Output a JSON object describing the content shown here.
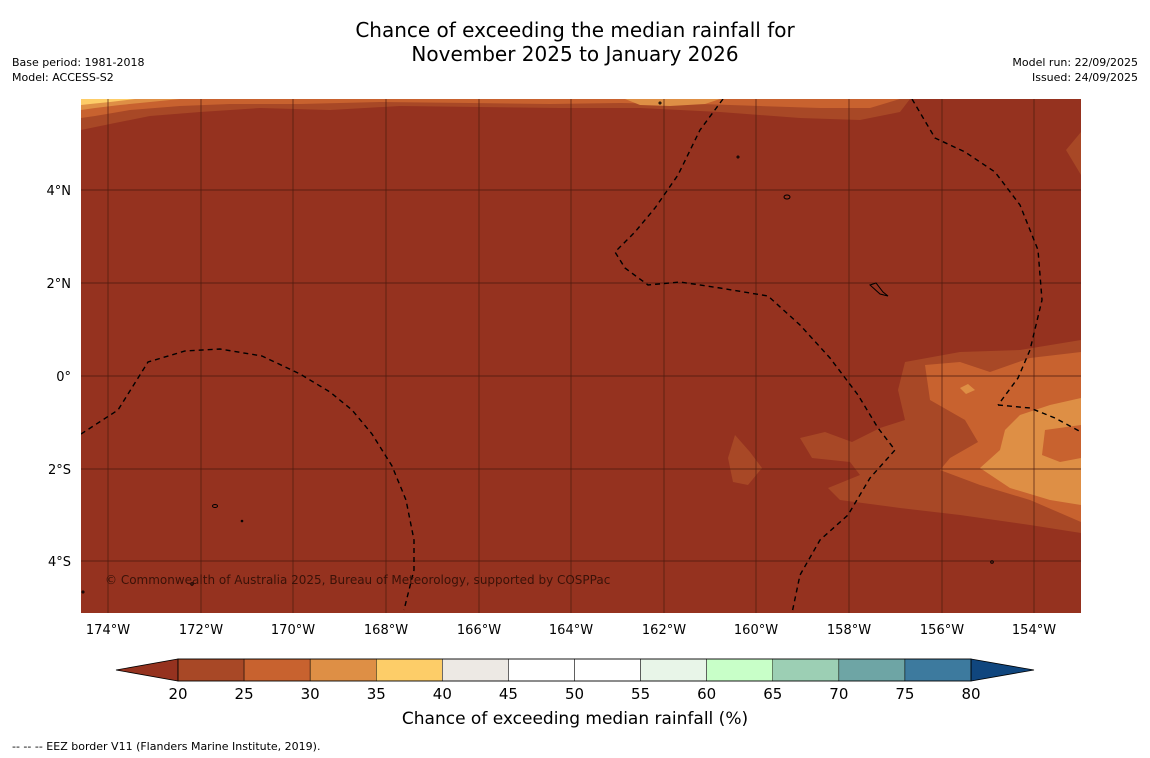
{
  "title": {
    "line1": "Chance of exceeding the median rainfall for",
    "line2": "November 2025 to January 2026"
  },
  "meta_left": {
    "base_period": "Base period: 1981-2018",
    "model": "Model: ACCESS-S2"
  },
  "meta_right": {
    "model_run": "Model run: 22/09/2025",
    "issued": "Issued: 24/09/2025"
  },
  "map": {
    "x_ticks": [
      "174°W",
      "172°W",
      "170°W",
      "168°W",
      "166°W",
      "164°W",
      "162°W",
      "160°W",
      "158°W",
      "156°W",
      "154°W"
    ],
    "y_ticks": [
      "4°N",
      "2°N",
      "0°",
      "2°S",
      "4°S"
    ],
    "copyright": "© Commonwealth of Australia 2025, Bureau of Meteorology, supported by COSPPac",
    "background_color": "#95321f"
  },
  "colorbar": {
    "title": "Chance of exceeding median rainfall (%)",
    "ticks": [
      "20",
      "25",
      "30",
      "35",
      "40",
      "45",
      "50",
      "55",
      "60",
      "65",
      "70",
      "75",
      "80"
    ],
    "colors": [
      "#a84826",
      "#c8622f",
      "#de8f45",
      "#fdcd68",
      "#ede9e4",
      "#ffffff",
      "#ffffff",
      "#e8f5e8",
      "#c8ffc8",
      "#9ccfb4",
      "#6ea5a5",
      "#3d7a9e"
    ],
    "under_color": "#95321f",
    "over_color": "#10467e"
  },
  "footnote": "--  --  -- EEZ border V11 (Flanders Marine Institute, 2019)."
}
